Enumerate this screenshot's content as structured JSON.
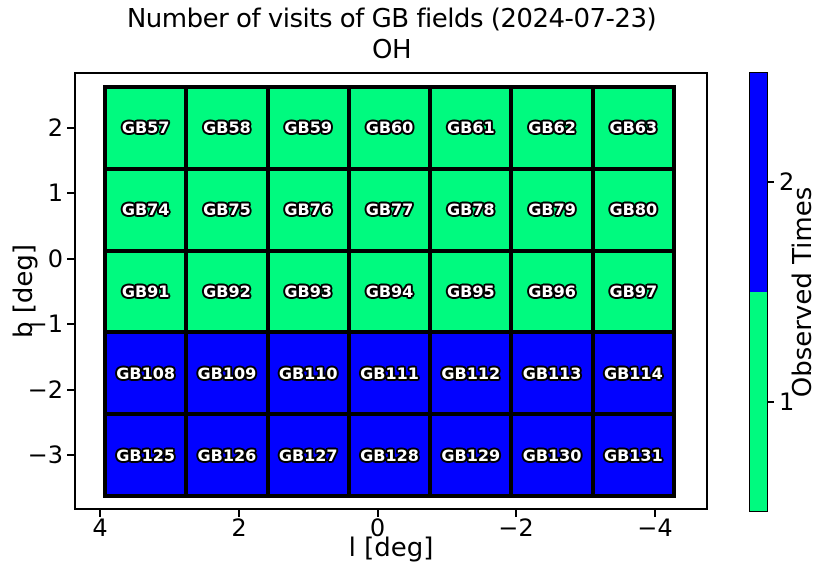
{
  "title": {
    "line1": "Number of visits of GB fields (2024-07-23)",
    "line2": "OH"
  },
  "x_axis": {
    "label": "l [deg]",
    "ticks": [
      "4",
      "2",
      "0",
      "−2",
      "−4"
    ]
  },
  "y_axis": {
    "label": "b [deg]",
    "ticks": [
      "2",
      "1",
      "0",
      "−1",
      "−2",
      "−3"
    ]
  },
  "colorbar": {
    "label": "Observed Times",
    "ticks": [
      {
        "value": "2",
        "color": "#0202ff"
      },
      {
        "value": "1",
        "color": "#00fa7f"
      }
    ]
  },
  "colors": {
    "visits_1": "#00fa7f",
    "visits_2": "#0202ff",
    "cell_border": "#000000",
    "cell_text_fill": "#ffffff",
    "cell_text_outline": "#000000"
  },
  "chart_data": {
    "type": "heatmap",
    "title": "Number of visits of GB fields (2024-07-23) OH",
    "xlabel": "l [deg]",
    "ylabel": "b [deg]",
    "x_ticks": [
      4,
      2,
      0,
      -2,
      -4
    ],
    "y_ticks": [
      2,
      1,
      0,
      -1,
      -2,
      -3
    ],
    "x_axis_inverted": true,
    "xlim_est": [
      4.4,
      -4.8
    ],
    "ylim_est": [
      -3.7,
      2.7
    ],
    "col_l_centers_est": [
      3.4,
      2.2,
      1.0,
      -0.2,
      -1.4,
      -2.6,
      -3.7
    ],
    "row_b_centers_est": [
      2.0,
      0.8,
      -0.5,
      -1.8,
      -3.0
    ],
    "colorbar_label": "Observed Times",
    "colorbar_ticks": [
      1,
      2
    ],
    "value_colors": {
      "1": "#00fa7f",
      "2": "#0202ff"
    },
    "rows": [
      {
        "observed_times": 1,
        "fields": [
          "GB57",
          "GB58",
          "GB59",
          "GB60",
          "GB61",
          "GB62",
          "GB63"
        ]
      },
      {
        "observed_times": 1,
        "fields": [
          "GB74",
          "GB75",
          "GB76",
          "GB77",
          "GB78",
          "GB79",
          "GB80"
        ]
      },
      {
        "observed_times": 1,
        "fields": [
          "GB91",
          "GB92",
          "GB93",
          "GB94",
          "GB95",
          "GB96",
          "GB97"
        ]
      },
      {
        "observed_times": 2,
        "fields": [
          "GB108",
          "GB109",
          "GB110",
          "GB111",
          "GB112",
          "GB113",
          "GB114"
        ]
      },
      {
        "observed_times": 2,
        "fields": [
          "GB125",
          "GB126",
          "GB127",
          "GB128",
          "GB129",
          "GB130",
          "GB131"
        ]
      }
    ]
  }
}
